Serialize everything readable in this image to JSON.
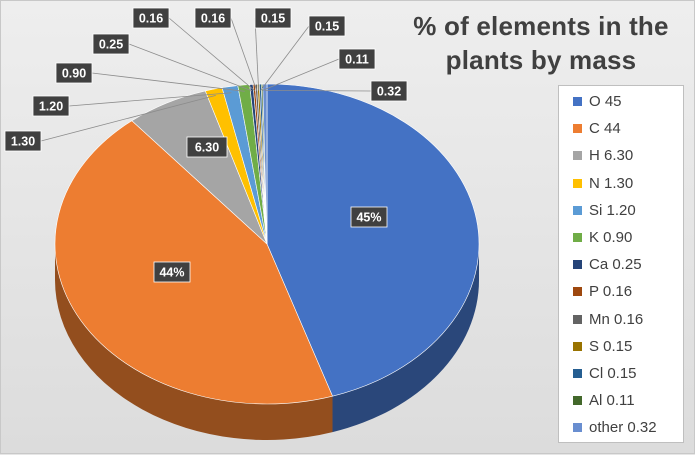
{
  "chart_data": {
    "type": "pie",
    "title_lines": [
      "% of elements in the",
      "plants by mass"
    ],
    "categories": [
      "O 45",
      "C 44",
      "H 6.30",
      "N 1.30",
      "Si 1.20",
      "K 0.90",
      "Ca 0.25",
      "P 0.16",
      "Mn 0.16",
      "S 0.15",
      "Cl 0.15",
      "Al 0.11",
      "other 0.32"
    ],
    "values": [
      45,
      44,
      6.3,
      1.3,
      1.2,
      0.9,
      0.25,
      0.16,
      0.16,
      0.15,
      0.15,
      0.11,
      0.32
    ],
    "data_labels": [
      "45%",
      "44%",
      "6.30",
      "1.30",
      "1.20",
      "0.90",
      "0.25",
      "0.16",
      "0.16",
      "0.15",
      "0.15",
      "0.11",
      "0.32"
    ],
    "colors": [
      "#4472c4",
      "#ed7d31",
      "#a5a5a5",
      "#ffc000",
      "#5b9bd5",
      "#70ad47",
      "#264478",
      "#9e480e",
      "#636363",
      "#997300",
      "#255e91",
      "#43682b",
      "#698ed0"
    ],
    "legend_position": "right",
    "style": "3d-pie"
  }
}
